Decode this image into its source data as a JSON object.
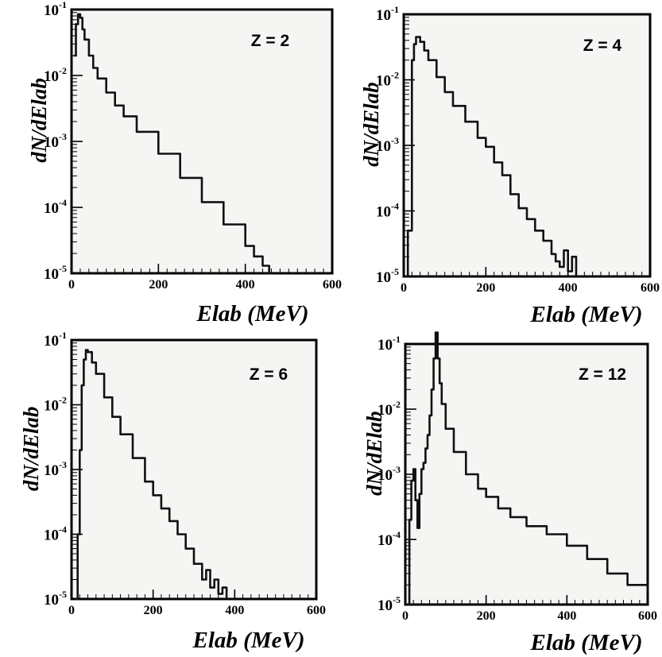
{
  "chart_data": [
    {
      "type": "line",
      "annotation": "Z = 2",
      "xlabel": "Elab (MeV)",
      "ylabel": "dN/dElab",
      "xlim": [
        0,
        600
      ],
      "ylim": [
        1e-05,
        0.1
      ],
      "yscale": "log",
      "x_ticks": [
        "0",
        "200",
        "400",
        "600"
      ],
      "y_ticks": [
        {
          "base": "10",
          "exp": "-1"
        },
        {
          "base": "10",
          "exp": "-2"
        },
        {
          "base": "10",
          "exp": "-3"
        },
        {
          "base": "10",
          "exp": "-4"
        },
        {
          "base": "10",
          "exp": "-5"
        }
      ],
      "series": [
        {
          "x": [
            5,
            10,
            15,
            20,
            25,
            30,
            40,
            50,
            60,
            80,
            100,
            120,
            150,
            200,
            250,
            300,
            350,
            400,
            420,
            440,
            455,
            460
          ],
          "y": [
            0.02,
            0.06,
            0.085,
            0.075,
            0.05,
            0.035,
            0.02,
            0.013,
            0.009,
            0.0055,
            0.0035,
            0.0024,
            0.0014,
            0.00065,
            0.00028,
            0.00012,
            5.5e-05,
            2.6e-05,
            1.8e-05,
            1.3e-05,
            1e-05,
            1e-05
          ]
        }
      ]
    },
    {
      "type": "line",
      "annotation": "Z = 4",
      "xlabel": "Elab (MeV)",
      "ylabel": "dN/dElab",
      "xlim": [
        0,
        600
      ],
      "ylim": [
        1e-05,
        0.1
      ],
      "yscale": "log",
      "x_ticks": [
        "0",
        "200",
        "400",
        "600"
      ],
      "y_ticks": [
        {
          "base": "10",
          "exp": "-1"
        },
        {
          "base": "10",
          "exp": "-2"
        },
        {
          "base": "10",
          "exp": "-3"
        },
        {
          "base": "10",
          "exp": "-4"
        },
        {
          "base": "10",
          "exp": "-5"
        }
      ],
      "series": [
        {
          "x": [
            5,
            10,
            20,
            25,
            30,
            40,
            50,
            60,
            80,
            100,
            120,
            150,
            180,
            200,
            220,
            240,
            260,
            280,
            300,
            320,
            340,
            360,
            370,
            380,
            390,
            400,
            410,
            420
          ],
          "y": [
            1e-05,
            5e-05,
            0.02,
            0.035,
            0.045,
            0.038,
            0.028,
            0.02,
            0.011,
            0.0065,
            0.004,
            0.0023,
            0.0013,
            0.00095,
            0.00055,
            0.00035,
            0.00018,
            0.00011,
            7.5e-05,
            5e-05,
            3.5e-05,
            2.2e-05,
            1.7e-05,
            1.4e-05,
            2.5e-05,
            1.2e-05,
            2e-05,
            1e-05
          ]
        }
      ]
    },
    {
      "type": "line",
      "annotation": "Z = 6",
      "xlabel": "Elab (MeV)",
      "ylabel": "dN/dElab",
      "xlim": [
        0,
        600
      ],
      "ylim": [
        1e-05,
        0.1
      ],
      "yscale": "log",
      "x_ticks": [
        "0",
        "200",
        "400",
        "600"
      ],
      "y_ticks": [
        {
          "base": "10",
          "exp": "-1"
        },
        {
          "base": "10",
          "exp": "-2"
        },
        {
          "base": "10",
          "exp": "-3"
        },
        {
          "base": "10",
          "exp": "-4"
        },
        {
          "base": "10",
          "exp": "-5"
        }
      ],
      "series": [
        {
          "x": [
            10,
            15,
            20,
            25,
            30,
            35,
            40,
            50,
            60,
            80,
            100,
            120,
            150,
            180,
            200,
            220,
            240,
            260,
            280,
            300,
            320,
            330,
            340,
            350,
            360,
            370,
            380
          ],
          "y": [
            1e-05,
            0.0001,
            0.002,
            0.02,
            0.05,
            0.07,
            0.065,
            0.045,
            0.03,
            0.013,
            0.0065,
            0.0035,
            0.0015,
            0.00065,
            0.0004,
            0.00025,
            0.00016,
            0.0001,
            6e-05,
            3.5e-05,
            2e-05,
            2.8e-05,
            1.5e-05,
            2e-05,
            1.2e-05,
            1.5e-05,
            1e-05
          ]
        }
      ]
    },
    {
      "type": "line",
      "annotation": "Z = 12",
      "xlabel": "Elab (MeV)",
      "ylabel": "dN/dElab",
      "xlim": [
        0,
        600
      ],
      "ylim": [
        1e-05,
        0.1
      ],
      "yscale": "log",
      "x_ticks": [
        "0",
        "200",
        "400",
        "600"
      ],
      "y_ticks": [
        {
          "base": "10",
          "exp": "-1"
        },
        {
          "base": "10",
          "exp": "-2"
        },
        {
          "base": "10",
          "exp": "-3"
        },
        {
          "base": "10",
          "exp": "-4"
        },
        {
          "base": "10",
          "exp": "-5"
        }
      ],
      "series": [
        {
          "x": [
            5,
            10,
            15,
            20,
            25,
            30,
            35,
            40,
            45,
            50,
            55,
            60,
            65,
            70,
            75,
            80,
            85,
            90,
            100,
            120,
            150,
            180,
            200,
            230,
            260,
            300,
            350,
            400,
            450,
            500,
            550,
            600
          ],
          "y": [
            1e-05,
            0.0002,
            0.0008,
            0.0012,
            0.0004,
            0.00015,
            0.0005,
            0.0012,
            0.0015,
            0.0025,
            0.004,
            0.008,
            0.02,
            0.06,
            0.15,
            0.06,
            0.025,
            0.012,
            0.005,
            0.0022,
            0.001,
            0.0006,
            0.00045,
            0.0003,
            0.00022,
            0.00016,
            0.00012,
            8e-05,
            5e-05,
            3e-05,
            2e-05,
            1.5e-05
          ]
        }
      ]
    }
  ]
}
